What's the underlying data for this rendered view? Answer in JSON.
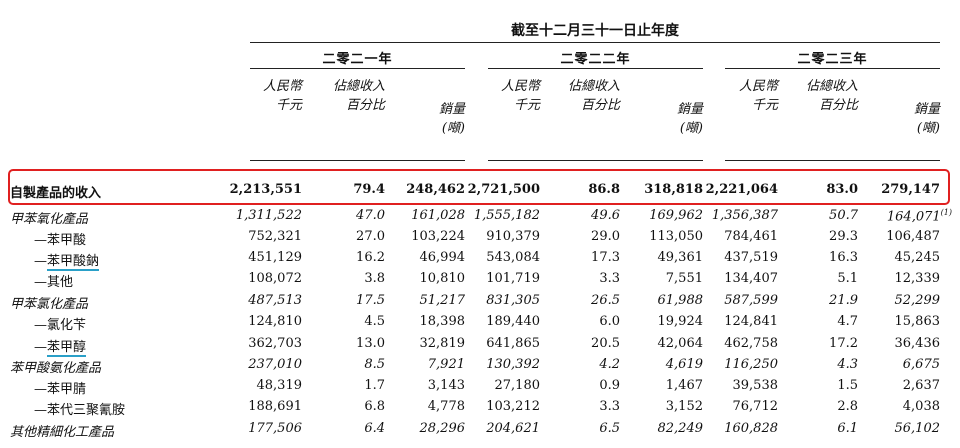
{
  "header": {
    "period": "截至十二月三十一日止年度",
    "years": [
      "二零二一年",
      "二零二二年",
      "二零二三年"
    ],
    "col_rmb": [
      "人民幣",
      "千元"
    ],
    "col_pct": [
      "佔總收入",
      "百分比"
    ],
    "col_vol": [
      "銷量",
      "(噸)"
    ]
  },
  "rows": [
    {
      "label": "自製產品的收入",
      "style": "bold",
      "v": [
        "2,213,551",
        "79.4",
        "248,462",
        "2,721,500",
        "86.8",
        "318,818",
        "2,221,064",
        "83.0",
        "279,147"
      ]
    },
    {
      "label": "甲苯氧化產品",
      "style": "it",
      "v": [
        "1,311,522",
        "47.0",
        "161,028",
        "1,555,182",
        "49.6",
        "169,962",
        "1,356,387",
        "50.7",
        "164,071"
      ],
      "note": "(1)"
    },
    {
      "label": "—苯甲酸",
      "style": "",
      "v": [
        "752,321",
        "27.0",
        "103,224",
        "910,379",
        "29.0",
        "113,050",
        "784,461",
        "29.3",
        "106,487"
      ]
    },
    {
      "label": "—苯甲酸鈉",
      "style": "",
      "v": [
        "451,129",
        "16.2",
        "46,994",
        "543,084",
        "17.3",
        "49,361",
        "437,519",
        "16.3",
        "45,245"
      ]
    },
    {
      "label": "—其他",
      "style": "",
      "v": [
        "108,072",
        "3.8",
        "10,810",
        "101,719",
        "3.3",
        "7,551",
        "134,407",
        "5.1",
        "12,339"
      ]
    },
    {
      "label": "甲苯氯化產品",
      "style": "it",
      "v": [
        "487,513",
        "17.5",
        "51,217",
        "831,305",
        "26.5",
        "61,988",
        "587,599",
        "21.9",
        "52,299"
      ]
    },
    {
      "label": "—氯化苄",
      "style": "",
      "v": [
        "124,810",
        "4.5",
        "18,398",
        "189,440",
        "6.0",
        "19,924",
        "124,841",
        "4.7",
        "15,863"
      ]
    },
    {
      "label": "—苯甲醇",
      "style": "",
      "v": [
        "362,703",
        "13.0",
        "32,819",
        "641,865",
        "20.5",
        "42,064",
        "462,758",
        "17.2",
        "36,436"
      ]
    },
    {
      "label": "苯甲酸氨化產品",
      "style": "it",
      "v": [
        "237,010",
        "8.5",
        "7,921",
        "130,392",
        "4.2",
        "4,619",
        "116,250",
        "4.3",
        "6,675"
      ]
    },
    {
      "label": "—苯甲腈",
      "style": "",
      "v": [
        "48,319",
        "1.7",
        "3,143",
        "27,180",
        "0.9",
        "1,467",
        "39,538",
        "1.5",
        "2,637"
      ]
    },
    {
      "label": "—苯代三聚氰胺",
      "style": "",
      "v": [
        "188,691",
        "6.8",
        "4,778",
        "103,212",
        "3.3",
        "3,152",
        "76,712",
        "2.8",
        "4,038"
      ]
    },
    {
      "label": "其他精細化工產品",
      "style": "it",
      "v": [
        "177,506",
        "6.4",
        "28,296",
        "204,621",
        "6.5",
        "82,249",
        "160,828",
        "6.1",
        "56,102"
      ]
    }
  ]
}
